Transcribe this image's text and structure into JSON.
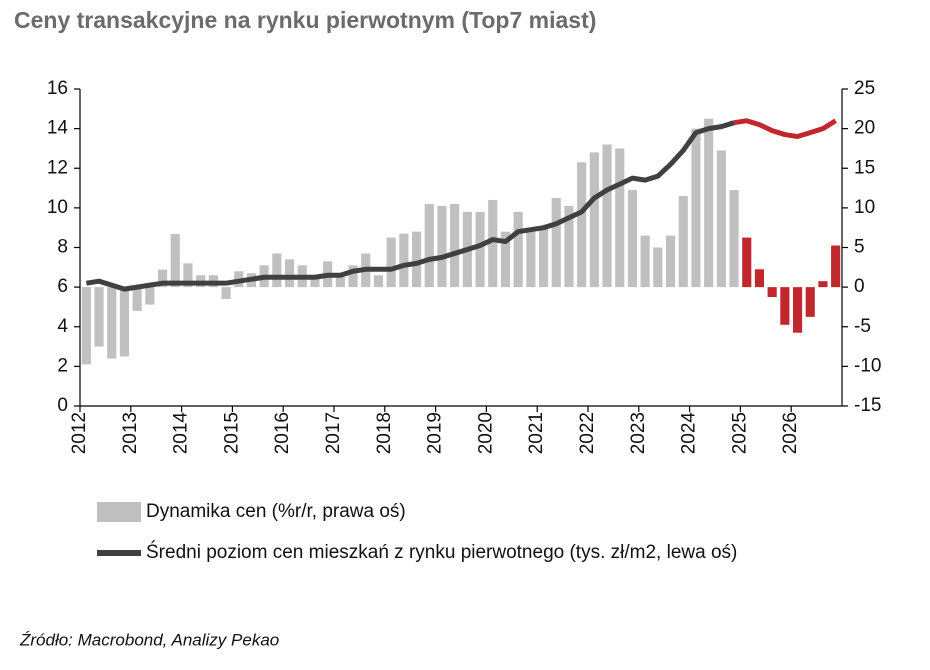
{
  "chart_data": {
    "type": "bar_line",
    "title": "Ceny transakcyjne na rynku pierwotnym (Top7 miast)",
    "source": "Źródło: Macrobond, Analizy Pekao",
    "categories": [
      "2012",
      null,
      null,
      null,
      "2013",
      null,
      null,
      null,
      "2014",
      null,
      null,
      null,
      "2015",
      null,
      null,
      null,
      "2016",
      null,
      null,
      null,
      "2017",
      null,
      null,
      null,
      "2018",
      null,
      null,
      null,
      "2019",
      null,
      null,
      null,
      "2020",
      null,
      null,
      null,
      "2021",
      null,
      null,
      null,
      "2022",
      null,
      null,
      null,
      "2023",
      null,
      null,
      null,
      "2024",
      null,
      null,
      null,
      "2025",
      null,
      null,
      null,
      "2026",
      null,
      null,
      null
    ],
    "series": [
      {
        "name": "Dynamika cen (%r/r, prawa oś)",
        "kind": "bar",
        "axis": "y2",
        "color": "#c0c0c0",
        "values": [
          -9.75,
          -7.5,
          -9.0,
          -8.75,
          -3.0,
          -2.2,
          2.2,
          6.7,
          3.0,
          1.5,
          1.5,
          -1.5,
          2.0,
          1.75,
          2.75,
          4.25,
          3.5,
          2.75,
          1.5,
          3.25,
          1.75,
          2.75,
          4.25,
          1.5,
          6.25,
          6.75,
          7.0,
          10.5,
          10.25,
          10.5,
          9.5,
          9.5,
          11.0,
          7.0,
          9.5,
          7.0,
          7.5,
          11.25,
          10.25,
          15.75,
          17.0,
          18.0,
          17.5,
          12.25,
          6.5,
          5.0,
          6.5,
          11.5,
          20.0,
          21.25,
          17.25,
          12.25,
          6.25,
          2.25,
          -1.25,
          -4.75,
          -5.75,
          -3.75,
          0.75,
          5.25
        ],
        "colors": [
          "#c0c0c0",
          "#c0c0c0",
          "#c0c0c0",
          "#c0c0c0",
          "#c0c0c0",
          "#c0c0c0",
          "#c0c0c0",
          "#c0c0c0",
          "#c0c0c0",
          "#c0c0c0",
          "#c0c0c0",
          "#c0c0c0",
          "#c0c0c0",
          "#c0c0c0",
          "#c0c0c0",
          "#c0c0c0",
          "#c0c0c0",
          "#c0c0c0",
          "#c0c0c0",
          "#c0c0c0",
          "#c0c0c0",
          "#c0c0c0",
          "#c0c0c0",
          "#c0c0c0",
          "#c0c0c0",
          "#c0c0c0",
          "#c0c0c0",
          "#c0c0c0",
          "#c0c0c0",
          "#c0c0c0",
          "#c0c0c0",
          "#c0c0c0",
          "#c0c0c0",
          "#c0c0c0",
          "#c0c0c0",
          "#c0c0c0",
          "#c0c0c0",
          "#c0c0c0",
          "#c0c0c0",
          "#c0c0c0",
          "#c0c0c0",
          "#c0c0c0",
          "#c0c0c0",
          "#c0c0c0",
          "#c0c0c0",
          "#c0c0c0",
          "#c0c0c0",
          "#c0c0c0",
          "#c0c0c0",
          "#c0c0c0",
          "#c0c0c0",
          "#c0c0c0",
          "#c0282d",
          "#c0282d",
          "#c0282d",
          "#c0282d",
          "#c0282d",
          "#c0282d",
          "#c0282d",
          "#c0282d"
        ]
      },
      {
        "name": "Średni poziom cen mieszkań z rynku pierwotnego (tys. zł/m2, lewa oś)",
        "kind": "line",
        "axis": "y",
        "color": "#404040",
        "values": [
          6.2,
          6.3,
          6.1,
          5.9,
          6.0,
          6.1,
          6.2,
          6.2,
          6.2,
          6.2,
          6.2,
          6.2,
          6.3,
          6.4,
          6.5,
          6.5,
          6.5,
          6.5,
          6.5,
          6.6,
          6.6,
          6.8,
          6.9,
          6.9,
          6.9,
          7.1,
          7.2,
          7.4,
          7.5,
          7.7,
          7.9,
          8.1,
          8.4,
          8.3,
          8.8,
          8.9,
          9.0,
          9.2,
          9.5,
          9.8,
          10.5,
          10.9,
          11.2,
          11.5,
          11.4,
          11.6,
          12.2,
          12.9,
          13.8,
          14.0,
          14.1,
          14.3,
          14.4,
          14.2,
          13.9,
          13.7,
          13.6,
          13.8,
          14.0,
          14.4
        ],
        "colors": [
          "#404040",
          "#404040",
          "#404040",
          "#404040",
          "#404040",
          "#404040",
          "#404040",
          "#404040",
          "#404040",
          "#404040",
          "#404040",
          "#404040",
          "#404040",
          "#404040",
          "#404040",
          "#404040",
          "#404040",
          "#404040",
          "#404040",
          "#404040",
          "#404040",
          "#404040",
          "#404040",
          "#404040",
          "#404040",
          "#404040",
          "#404040",
          "#404040",
          "#404040",
          "#404040",
          "#404040",
          "#404040",
          "#404040",
          "#404040",
          "#404040",
          "#404040",
          "#404040",
          "#404040",
          "#404040",
          "#404040",
          "#404040",
          "#404040",
          "#404040",
          "#404040",
          "#404040",
          "#404040",
          "#404040",
          "#404040",
          "#404040",
          "#404040",
          "#404040",
          "#404040",
          "#c0282d",
          "#c0282d",
          "#c0282d",
          "#c0282d",
          "#c0282d",
          "#c0282d",
          "#c0282d",
          "#c0282d"
        ]
      }
    ],
    "ylim": [
      0,
      16
    ],
    "yticks": [
      0,
      2,
      4,
      6,
      8,
      10,
      12,
      14,
      16
    ],
    "y2lim": [
      -15,
      25
    ],
    "y2ticks": [
      -15,
      -10,
      -5,
      0,
      5,
      10,
      15,
      20,
      25
    ],
    "grid": false
  }
}
